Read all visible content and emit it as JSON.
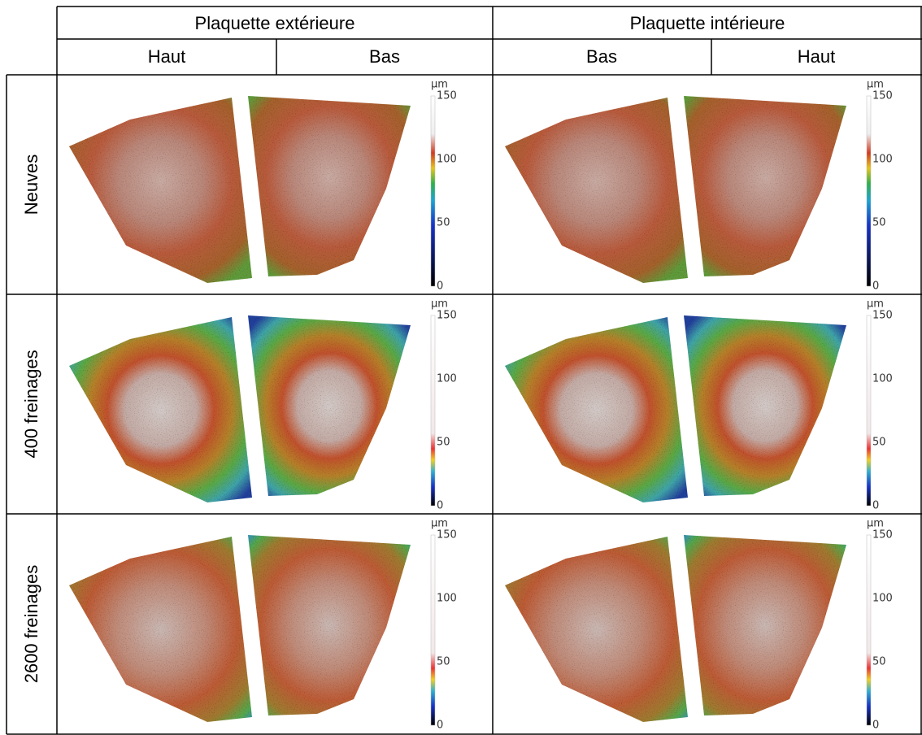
{
  "table": {
    "header": {
      "groups": [
        "Plaquette extérieure",
        "Plaquette intérieure"
      ],
      "sides": [
        "Haut",
        "Bas",
        "Bas",
        "Haut"
      ]
    },
    "rows": [
      {
        "label": "Neuves",
        "colorbars": [
          {
            "unit": "µm",
            "ticks": [
              150,
              100,
              50,
              0
            ]
          },
          {
            "unit": "µm",
            "ticks": [
              150,
              100,
              50,
              0
            ]
          }
        ]
      },
      {
        "label": "400 freinages",
        "colorbars": [
          {
            "unit": "µm",
            "ticks": [
              150,
              100,
              50,
              0
            ]
          },
          {
            "unit": "µm",
            "ticks": [
              150,
              100,
              50,
              0
            ]
          }
        ]
      },
      {
        "label": "2600 freinages",
        "colorbars": [
          {
            "unit": "µm",
            "ticks": [
              150,
              100,
              50,
              0
            ]
          },
          {
            "unit": "µm",
            "ticks": [
              150,
              100,
              50,
              0
            ]
          }
        ]
      }
    ]
  }
}
